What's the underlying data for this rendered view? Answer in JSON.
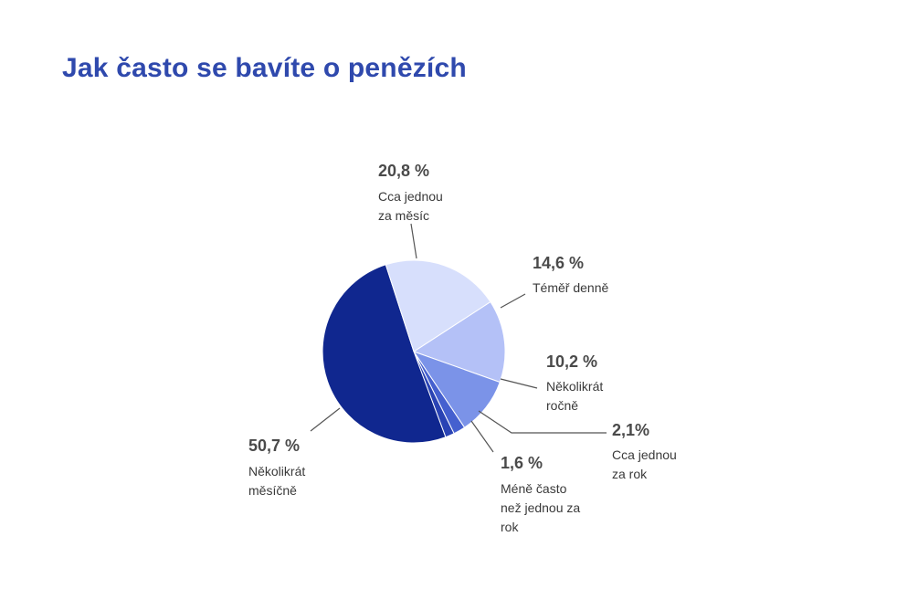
{
  "chart_data": {
    "type": "pie",
    "title": "Jak často se bavíte o penězích",
    "slices": [
      {
        "label": "Téměř denně",
        "value": 14.6,
        "value_label": "14,6 %",
        "color": "#b4c1f7"
      },
      {
        "label": "Několikrát ročně",
        "value": 10.2,
        "value_label": "10,2 %",
        "color": "#7b93e8"
      },
      {
        "label": "Cca jednou za rok",
        "value": 2.1,
        "value_label": "2,1%",
        "color": "#4560cf"
      },
      {
        "label": "Méně často než jednou za rok",
        "value": 1.6,
        "value_label": "1,6 %",
        "color": "#2a43b4"
      },
      {
        "label": "Několikrát měsíčně",
        "value": 50.7,
        "value_label": "50,7 %",
        "color": "#10278f"
      },
      {
        "label": "Cca jednou za měsíc",
        "value": 20.8,
        "value_label": "20,8 %",
        "color": "#d7dffc"
      }
    ]
  }
}
